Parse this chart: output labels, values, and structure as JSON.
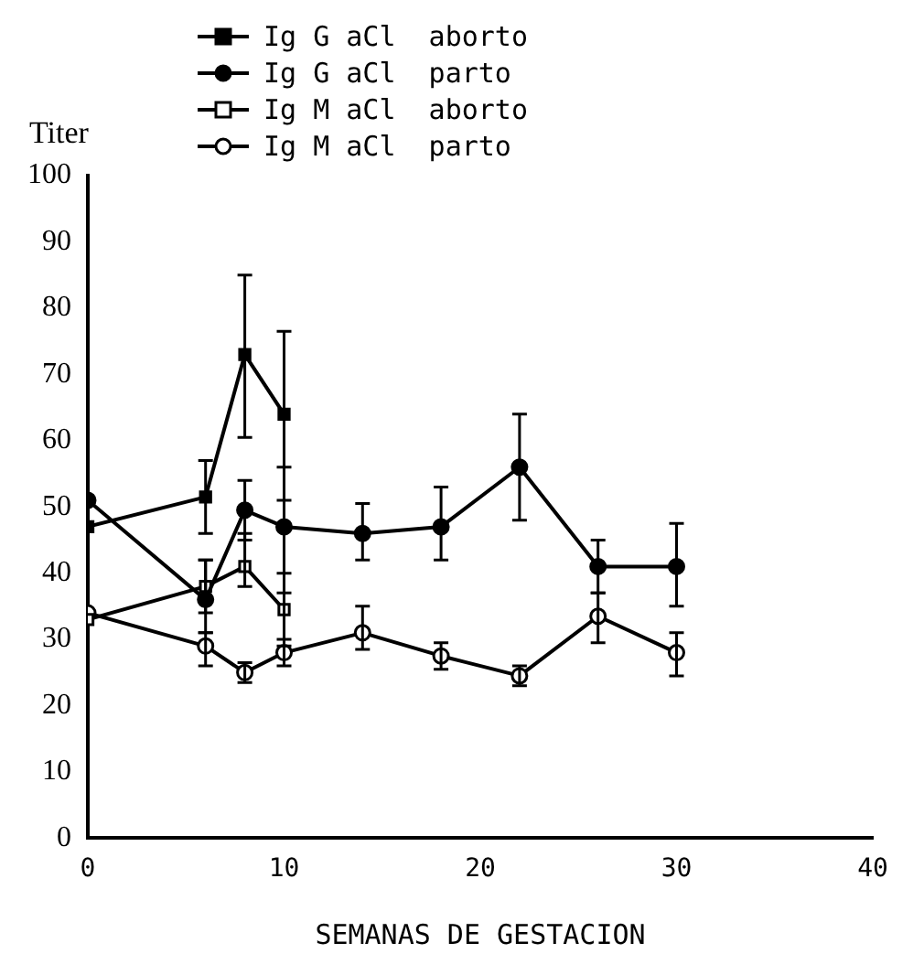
{
  "chart_data": {
    "type": "line",
    "xlabel": "SEMANAS DE GESTACION",
    "ylabel": "Titer",
    "xlim": [
      0,
      40
    ],
    "xticks": [
      0,
      10,
      20,
      30,
      40
    ],
    "ylim": [
      0,
      100
    ],
    "yticks": [
      0,
      10,
      20,
      30,
      40,
      50,
      60,
      70,
      80,
      90,
      100
    ],
    "grid": false,
    "legend": "top",
    "line_style": "solid",
    "series": [
      {
        "name": "Ig G aCl  aborto",
        "color": "#000000",
        "marker": "square",
        "x": [
          0,
          6,
          8,
          10
        ],
        "values": [
          47,
          51.5,
          73,
          64
        ],
        "errors": [
          null,
          [
            46,
            57
          ],
          [
            60.5,
            85
          ],
          [
            51,
            76.5
          ]
        ]
      },
      {
        "name": "Ig G aCl  parto",
        "color": "#000000",
        "marker": "circle",
        "x": [
          0,
          6,
          8,
          10,
          14,
          18,
          22,
          26,
          30
        ],
        "values": [
          51,
          36,
          49.5,
          47,
          46,
          47,
          56,
          41,
          41
        ],
        "errors": [
          null,
          [
            31,
            42
          ],
          [
            45,
            54
          ],
          [
            37,
            56
          ],
          [
            42,
            50.5
          ],
          [
            42,
            53
          ],
          [
            48,
            64
          ],
          [
            37,
            45
          ],
          [
            35,
            47.5
          ]
        ]
      },
      {
        "name": "Ig M aCl  aborto",
        "color": "#000000",
        "marker": "square",
        "colors": [
          "#ffffff",
          "#ffffff",
          "#ffffff",
          "#ffffff"
        ],
        "x": [
          0,
          6,
          8,
          10
        ],
        "values": [
          33,
          38,
          41,
          34.5
        ],
        "errors": [
          null,
          [
            34,
            42
          ],
          [
            38,
            46
          ],
          [
            29,
            40
          ]
        ]
      },
      {
        "name": "Ig M aCl  parto",
        "color": "#000000",
        "marker": "circle",
        "colors": [
          "#ffffff",
          "#ffffff",
          "#ffffff",
          "#ffffff",
          "#ffffff",
          "#ffffff",
          "#ffffff",
          "#ffffff",
          "#ffffff"
        ],
        "x": [
          0,
          6,
          8,
          10,
          14,
          18,
          22,
          26,
          30
        ],
        "values": [
          34,
          29,
          25,
          28,
          31,
          27.5,
          24.5,
          33.5,
          28
        ],
        "errors": [
          null,
          [
            26,
            31
          ],
          [
            23.5,
            26.5
          ],
          [
            26,
            30
          ],
          [
            28.5,
            35
          ],
          [
            25.5,
            29.5
          ],
          [
            23,
            26
          ],
          [
            29.5,
            37
          ],
          [
            24.5,
            31
          ]
        ]
      }
    ]
  }
}
